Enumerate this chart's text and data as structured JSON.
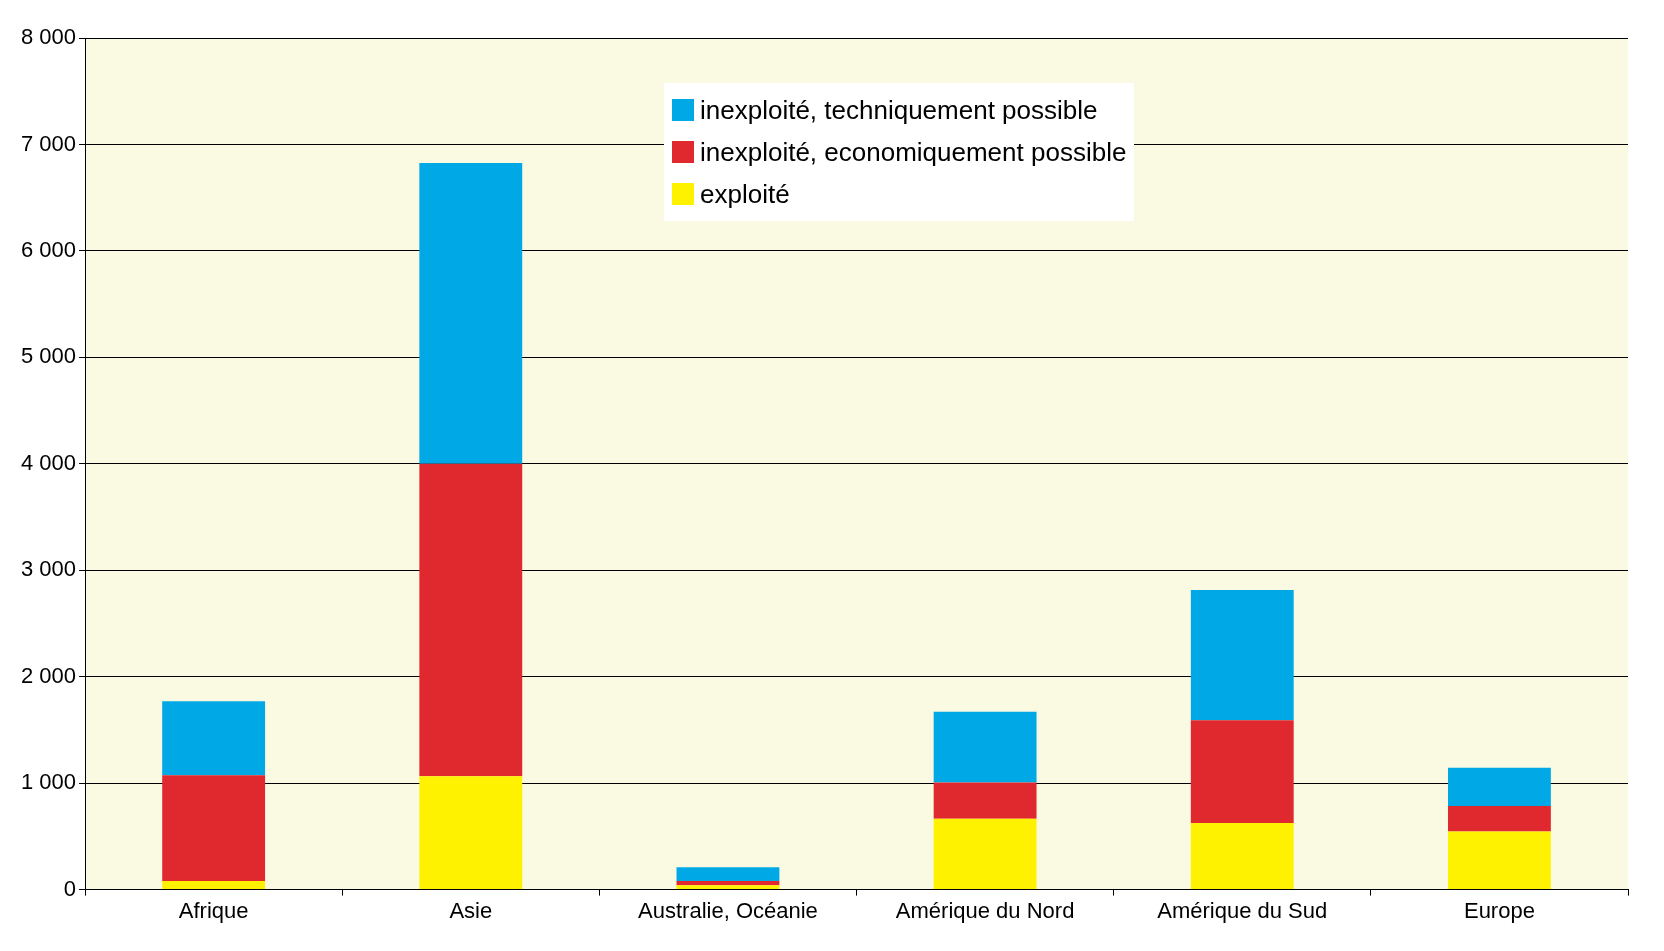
{
  "chart_data": {
    "type": "bar",
    "stacked": true,
    "categories": [
      "Afrique",
      "Asie",
      "Australie, Océanie",
      "Amérique du Nord",
      "Amérique du Sud",
      "Europe"
    ],
    "series": [
      {
        "name": "exploité",
        "color": "#fff200",
        "values": [
          80,
          1065,
          40,
          665,
          625,
          545
        ]
      },
      {
        "name": "inexploité, economiquement possible",
        "color": "#e0292e",
        "values": [
          995,
          2935,
          40,
          340,
          965,
          240
        ]
      },
      {
        "name": "inexploité, techniquement possible",
        "color": "#00a9e6",
        "values": [
          695,
          2825,
          130,
          665,
          1225,
          360
        ]
      }
    ],
    "ylim": [
      0,
      8000
    ],
    "yticks": [
      {
        "value": 0,
        "label": "0"
      },
      {
        "value": 1000,
        "label": "1 000"
      },
      {
        "value": 2000,
        "label": "2 000"
      },
      {
        "value": 3000,
        "label": "3 000"
      },
      {
        "value": 4000,
        "label": "4 000"
      },
      {
        "value": 5000,
        "label": "5 000"
      },
      {
        "value": 6000,
        "label": "6 000"
      },
      {
        "value": 7000,
        "label": "7 000"
      },
      {
        "value": 8000,
        "label": "8 000"
      }
    ],
    "grid": "y",
    "legend": "top"
  }
}
